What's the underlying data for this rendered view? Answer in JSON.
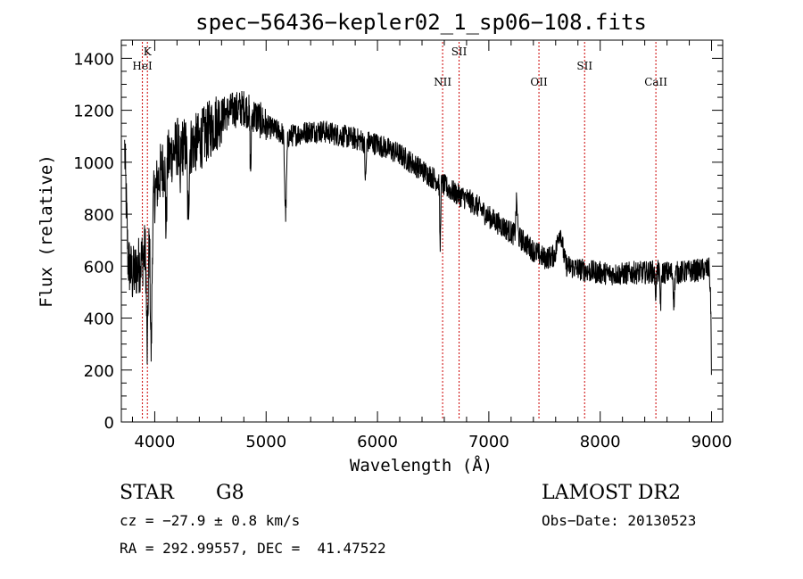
{
  "chart_data": {
    "type": "line",
    "title": "spec−56436−kepler02_1_sp06−108.fits",
    "xlabel": "Wavelength (Å)",
    "ylabel": "Flux (relative)",
    "xlim": [
      3700,
      9100
    ],
    "ylim": [
      0,
      1470
    ],
    "x_ticks": [
      4000,
      5000,
      6000,
      7000,
      8000,
      9000
    ],
    "y_ticks": [
      0,
      200,
      400,
      600,
      800,
      1000,
      1200,
      1400
    ],
    "grid": false,
    "line_color": "#000000",
    "marker_color": "#cc0000",
    "continuum": [
      [
        3730,
        1050
      ],
      [
        3760,
        620
      ],
      [
        3800,
        560
      ],
      [
        3850,
        600
      ],
      [
        3900,
        640
      ],
      [
        3950,
        720
      ],
      [
        4000,
        880
      ],
      [
        4050,
        960
      ],
      [
        4100,
        1000
      ],
      [
        4150,
        1030
      ],
      [
        4200,
        1060
      ],
      [
        4300,
        1060
      ],
      [
        4400,
        1080
      ],
      [
        4500,
        1130
      ],
      [
        4600,
        1180
      ],
      [
        4700,
        1200
      ],
      [
        4800,
        1210
      ],
      [
        4900,
        1180
      ],
      [
        5000,
        1140
      ],
      [
        5100,
        1120
      ],
      [
        5200,
        1100
      ],
      [
        5300,
        1110
      ],
      [
        5400,
        1120
      ],
      [
        5500,
        1120
      ],
      [
        5600,
        1110
      ],
      [
        5700,
        1100
      ],
      [
        5800,
        1090
      ],
      [
        5900,
        1080
      ],
      [
        6000,
        1070
      ],
      [
        6100,
        1050
      ],
      [
        6200,
        1030
      ],
      [
        6300,
        1000
      ],
      [
        6400,
        970
      ],
      [
        6500,
        940
      ],
      [
        6600,
        910
      ],
      [
        6700,
        880
      ],
      [
        6800,
        860
      ],
      [
        6900,
        830
      ],
      [
        7000,
        790
      ],
      [
        7100,
        760
      ],
      [
        7200,
        730
      ],
      [
        7300,
        700
      ],
      [
        7400,
        660
      ],
      [
        7500,
        630
      ],
      [
        7600,
        640
      ],
      [
        7700,
        600
      ],
      [
        7800,
        590
      ],
      [
        7900,
        580
      ],
      [
        8000,
        575
      ],
      [
        8100,
        570
      ],
      [
        8200,
        570
      ],
      [
        8300,
        575
      ],
      [
        8400,
        575
      ],
      [
        8500,
        580
      ],
      [
        8600,
        575
      ],
      [
        8700,
        575
      ],
      [
        8800,
        580
      ],
      [
        8900,
        585
      ],
      [
        8980,
        590
      ],
      [
        8995,
        420
      ],
      [
        9000,
        100
      ]
    ],
    "features": [
      {
        "center": 3933,
        "width": 10,
        "depth": 420
      },
      {
        "center": 3968,
        "width": 10,
        "depth": 500
      },
      {
        "center": 4102,
        "width": 8,
        "depth": 250
      },
      {
        "center": 4227,
        "width": 6,
        "depth": 200
      },
      {
        "center": 4300,
        "width": 10,
        "depth": 260
      },
      {
        "center": 4861,
        "width": 8,
        "depth": 220
      },
      {
        "center": 5175,
        "width": 12,
        "depth": 300
      },
      {
        "center": 5893,
        "width": 8,
        "depth": 150
      },
      {
        "center": 6563,
        "width": 6,
        "depth": 250
      },
      {
        "center": 7250,
        "width": 10,
        "depth": -130
      },
      {
        "center": 7640,
        "width": 30,
        "depth": -110
      },
      {
        "center": 8498,
        "width": 8,
        "depth": 80
      },
      {
        "center": 8542,
        "width": 8,
        "depth": 120
      },
      {
        "center": 8662,
        "width": 8,
        "depth": 110
      }
    ],
    "noise_amplitude": 45,
    "lines": [
      {
        "label": "HeI",
        "wavelength": 3889,
        "label_row": 2
      },
      {
        "label": "K",
        "wavelength": 3934,
        "label_row": 1
      },
      {
        "label": "NII",
        "wavelength": 6585,
        "label_row": 3
      },
      {
        "label": "SII",
        "wavelength": 6733,
        "label_row": 1
      },
      {
        "label": "OII",
        "wavelength": 7450,
        "label_row": 3
      },
      {
        "label": "SII",
        "wavelength": 7860,
        "label_row": 2
      },
      {
        "label": "CaII",
        "wavelength": 8500,
        "label_row": 3
      }
    ]
  },
  "info": {
    "class": "STAR",
    "subclass": "G8",
    "survey": "LAMOST DR2",
    "cz": "cz = −27.9 ± 0.8 km/s",
    "obs_date": "Obs−Date: 20130523",
    "coords": "RA = 292.99557, DEC =  41.47522"
  }
}
